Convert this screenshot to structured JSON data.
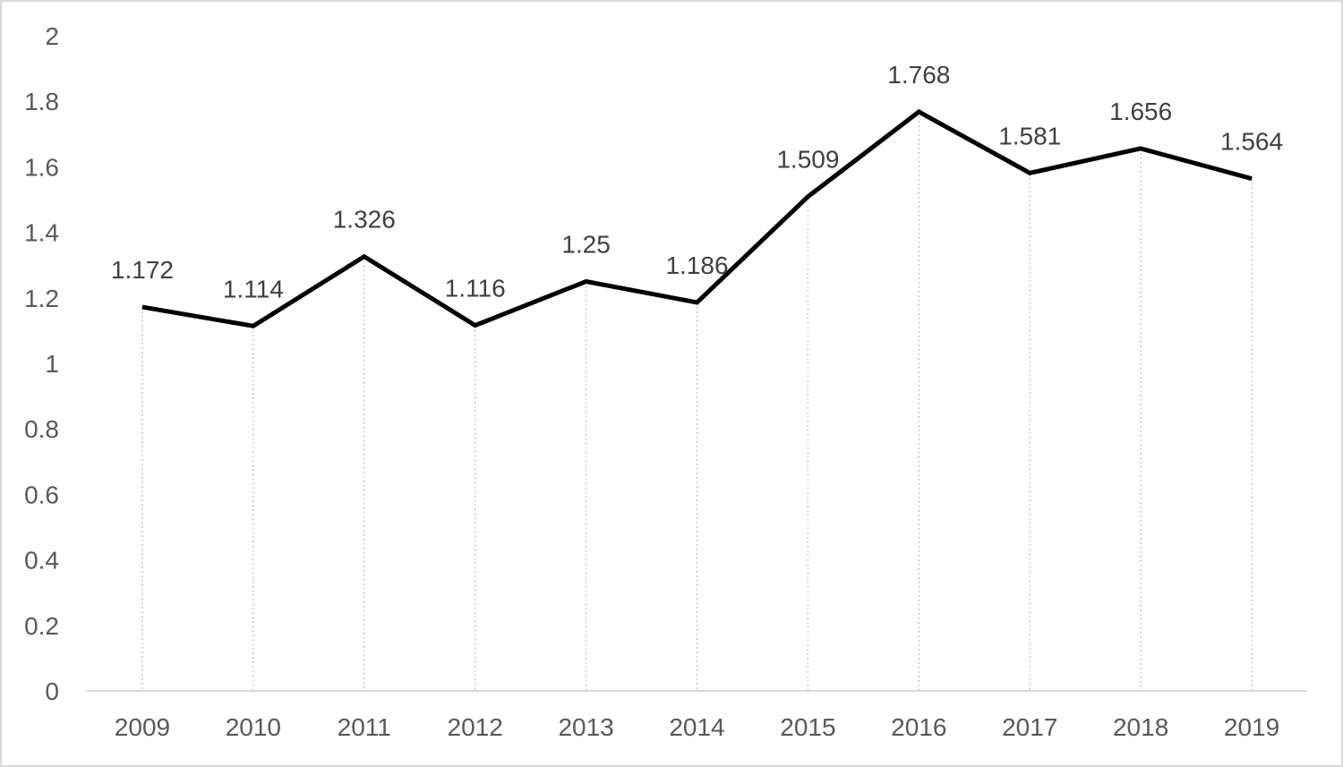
{
  "chart_data": {
    "type": "line",
    "title": "",
    "xlabel": "",
    "ylabel": "",
    "categories": [
      "2009",
      "2010",
      "2011",
      "2012",
      "2013",
      "2014",
      "2015",
      "2016",
      "2017",
      "2018",
      "2019"
    ],
    "series": [
      {
        "values": [
          1.172,
          1.114,
          1.326,
          1.116,
          1.25,
          1.186,
          1.509,
          1.768,
          1.581,
          1.656,
          1.564
        ],
        "data_labels": [
          "1.172",
          "1.114",
          "1.326",
          "1.116",
          "1.25",
          "1.186",
          "1.509",
          "1.768",
          "1.581",
          "1.656",
          "1.564"
        ],
        "color": "#000000"
      }
    ],
    "ylim": [
      0,
      2
    ],
    "y_ticks": [
      0,
      0.2,
      0.4,
      0.6,
      0.8,
      1,
      1.2,
      1.4,
      1.6,
      1.8,
      2
    ],
    "y_tick_labels": [
      "0",
      "0.2",
      "0.4",
      "0.6",
      "0.8",
      "1",
      "1.2",
      "1.4",
      "1.6",
      "1.8",
      "2"
    ],
    "grid": false,
    "drop_lines": true,
    "legend": "none",
    "colors": {
      "line": "#000000",
      "drop_lines": "#bfbfbf",
      "axis": "#d9d9d9",
      "tick_text": "#595959",
      "label_text": "#404040",
      "background": "#ffffff"
    }
  }
}
